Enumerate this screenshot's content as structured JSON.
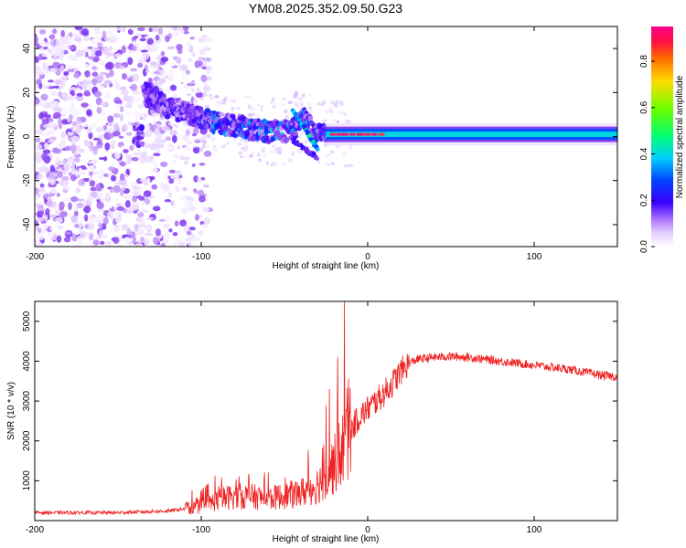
{
  "figure_title": "YM08.2025.352.09.50.G23",
  "colors": {
    "snr_line": "#ee2222",
    "axis": "#000000"
  },
  "chart_data": [
    {
      "type": "heatmap",
      "name": "spectrogram",
      "title": "YM08.2025.352.09.50.G23",
      "xlabel": "Height of straight line (km)",
      "ylabel": "Frequency (Hz)",
      "xlim": [
        -200,
        150
      ],
      "ylim": [
        -50,
        50
      ],
      "xticks": [
        -200,
        -100,
        0,
        100
      ],
      "xtick_labels": [
        "-200",
        "-100",
        "0",
        "100"
      ],
      "yticks": [
        -40,
        -20,
        0,
        20,
        40
      ],
      "ytick_labels": [
        "-40",
        "-20",
        "0",
        "20",
        "40"
      ],
      "colorbar": {
        "label": "Normalized spectral amplitude",
        "range": [
          0,
          0.95
        ],
        "ticks": [
          0,
          0.2,
          0.4,
          0.6,
          0.8
        ],
        "tick_labels": [
          "0.0",
          "0.2",
          "0.4",
          "0.6",
          "0.8"
        ],
        "colormap": [
          "#ffffff",
          "#e6d0ff",
          "#8a3ff0",
          "#3a00ff",
          "#0033ff",
          "#00ccff",
          "#00ff55",
          "#ccff00",
          "#ffaa00",
          "#ff3355",
          "#ff0088"
        ]
      },
      "features": {
        "noise_region_km": [
          -200,
          -100
        ],
        "signal_track": [
          [
            -135,
            20
          ],
          [
            -120,
            14
          ],
          [
            -100,
            8
          ],
          [
            -80,
            5
          ],
          [
            -60,
            2
          ],
          [
            -45,
            3
          ],
          [
            -38,
            10
          ],
          [
            -32,
            2
          ],
          [
            -25,
            1
          ],
          [
            -10,
            1
          ],
          [
            10,
            1
          ],
          [
            150,
            1
          ]
        ]
      }
    },
    {
      "type": "line",
      "name": "snr",
      "xlabel": "Height of straight line (km)",
      "ylabel": "SNR (10 * v/v)",
      "xlim": [
        -200,
        150
      ],
      "ylim": [
        0,
        5500
      ],
      "xticks": [
        -200,
        -100,
        0,
        100
      ],
      "xtick_labels": [
        "-200",
        "-100",
        "0",
        "100"
      ],
      "yticks": [
        1000,
        2000,
        3000,
        4000,
        5000
      ],
      "ytick_labels": [
        "1000",
        "2000",
        "3000",
        "4000",
        "5000"
      ],
      "series": [
        {
          "name": "SNR",
          "envelope_x": [
            -200,
            -150,
            -120,
            -100,
            -90,
            -80,
            -70,
            -60,
            -50,
            -40,
            -30,
            -20,
            -15,
            -10,
            -5,
            0,
            5,
            10,
            15,
            20,
            25,
            30,
            40,
            50,
            60,
            80,
            100,
            120,
            140,
            150
          ],
          "envelope_y": [
            200,
            200,
            240,
            350,
            520,
            620,
            600,
            560,
            620,
            700,
            900,
            1400,
            1800,
            2300,
            2600,
            2800,
            3000,
            3200,
            3450,
            3750,
            3950,
            4050,
            4100,
            4120,
            4100,
            4000,
            3900,
            3800,
            3650,
            3600
          ],
          "spikes": [
            [
              -14,
              5500
            ],
            [
              -18,
              4100
            ],
            [
              -23,
              3300
            ],
            [
              -25,
              2900
            ]
          ]
        }
      ]
    }
  ]
}
